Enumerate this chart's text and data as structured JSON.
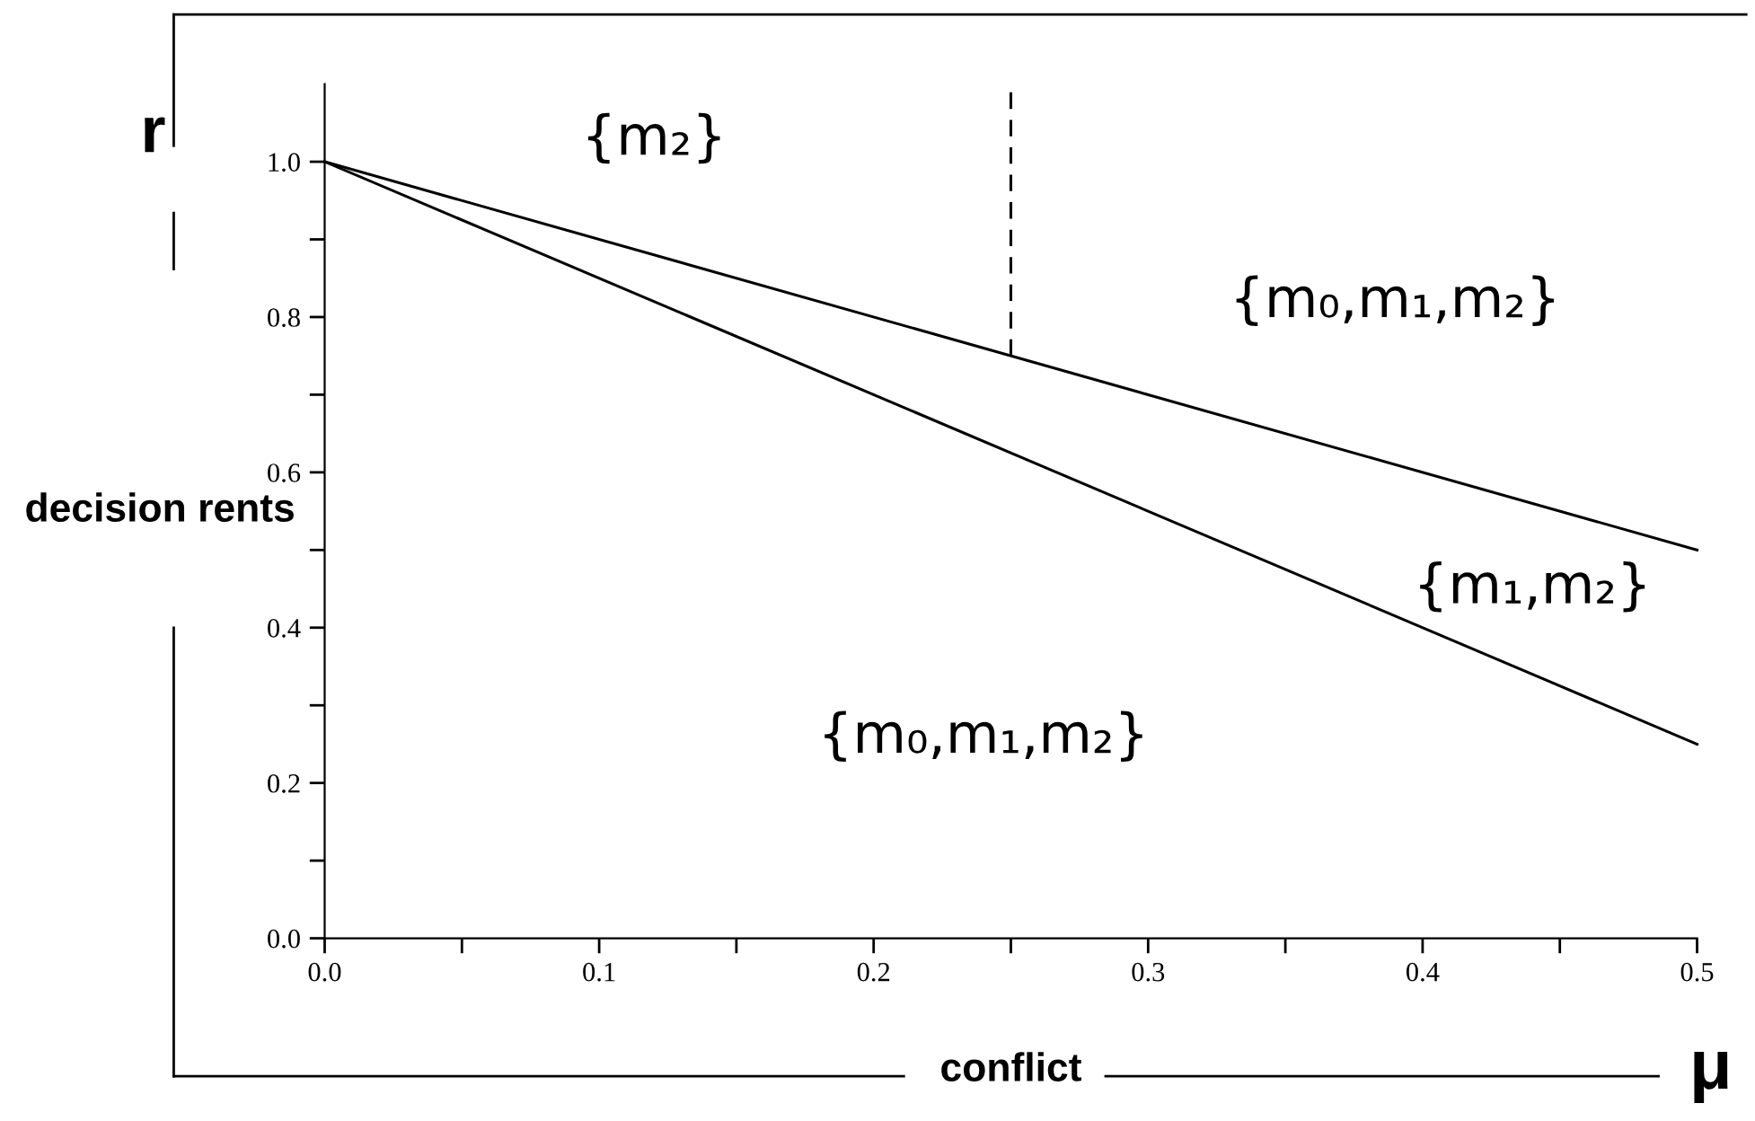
{
  "chart_data": {
    "type": "line",
    "xlabel": "conflict",
    "ylabel": "decision rents",
    "xlim": [
      0.0,
      0.5
    ],
    "ylim": [
      0.0,
      1.1
    ],
    "xticks": [
      {
        "value": 0.0,
        "label": "0.0"
      },
      {
        "value": 0.05,
        "label": null
      },
      0.1,
      {
        "value": 0.15,
        "label": null
      },
      0.2,
      {
        "value": 0.25,
        "label": null
      },
      0.3,
      {
        "value": 0.35,
        "label": null
      },
      0.4,
      {
        "value": 0.45,
        "label": null
      },
      0.5
    ],
    "yticks": [
      {
        "value": 0.0,
        "label": "0.0"
      },
      {
        "value": 0.1,
        "label": null
      },
      0.2,
      {
        "value": 0.3,
        "label": null
      },
      0.4,
      {
        "value": 0.5,
        "label": null
      },
      0.6,
      {
        "value": 0.7,
        "label": null
      },
      0.8,
      {
        "value": 0.9,
        "label": null
      },
      {
        "value": 1.0,
        "label": "1.0"
      }
    ],
    "grid": false,
    "legend": false,
    "marker": "none",
    "series": [
      {
        "color": "#000000",
        "x": [
          0.0,
          0.5
        ],
        "values": [
          1.0,
          0.5
        ],
        "line_style": "solid"
      },
      {
        "color": "#000000",
        "x": [
          0.0,
          0.5
        ],
        "values": [
          1.0,
          0.25
        ],
        "line_style": "solid"
      },
      {
        "color": "#000000",
        "x": [
          0.25,
          0.25
        ],
        "values": [
          0.75,
          1.1
        ],
        "line_style": "dashed"
      }
    ],
    "annotations": [
      "r",
      "μ",
      "{m₂}",
      "{m₀,m₁,m₂}",
      "{m₁,m₂}",
      "{m₀,m₁,m₂}"
    ]
  }
}
